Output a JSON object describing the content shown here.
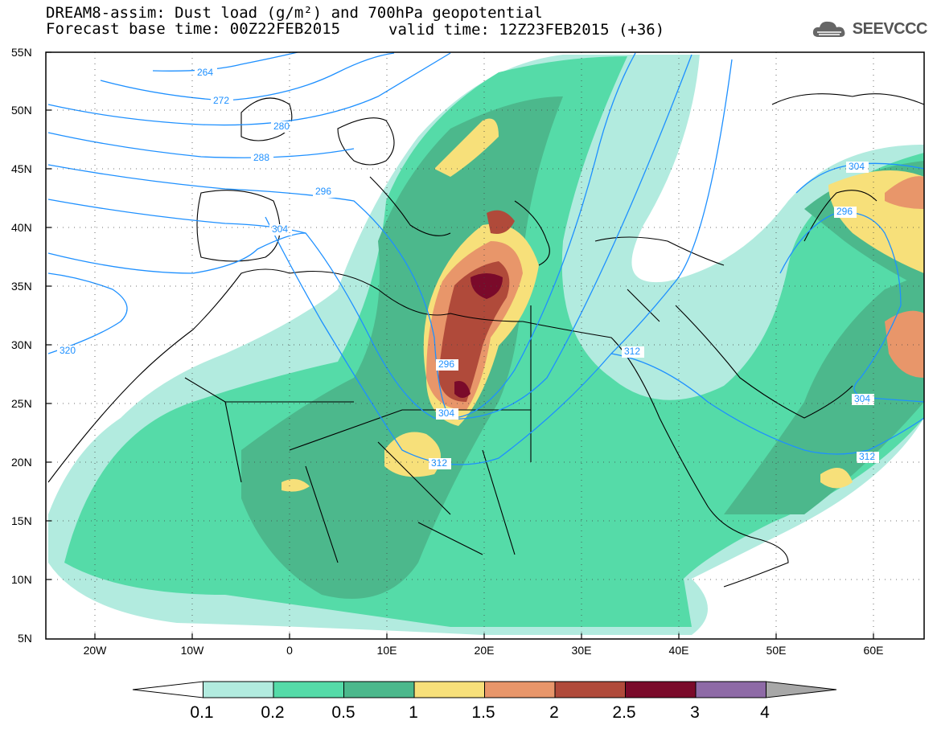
{
  "header": {
    "title_line1": "DREAM8-assim: Dust load (g/m²) and 700hPa geopotential",
    "title_line2": "Forecast base time: 00Z22FEB2015",
    "valid_time": "valid time: 12Z23FEB2015 (+36)",
    "logo_text": "SEEVCCC",
    "logo_icon": "cloud-logo-icon"
  },
  "axes": {
    "lat_labels": [
      "55N",
      "50N",
      "45N",
      "40N",
      "35N",
      "30N",
      "25N",
      "20N",
      "15N",
      "10N",
      "5N"
    ],
    "lon_labels": [
      "20W",
      "10W",
      "0",
      "10E",
      "20E",
      "30E",
      "40E",
      "50E",
      "60E"
    ]
  },
  "contours": {
    "labels": [
      "264",
      "272",
      "280",
      "288",
      "296",
      "304",
      "320",
      "296",
      "304",
      "312",
      "312",
      "304",
      "296",
      "304",
      "312"
    ],
    "color": "#1e90ff"
  },
  "colorbar": {
    "labels": [
      "0.1",
      "0.2",
      "0.5",
      "1",
      "1.5",
      "2",
      "2.5",
      "3",
      "4"
    ],
    "colors": [
      "#ffffff",
      "#b2ebdf",
      "#55dba8",
      "#4cb88c",
      "#f7e07a",
      "#e8966a",
      "#b04a3a",
      "#7a0a2a",
      "#8e6aa6",
      "#a8a8a8"
    ]
  }
}
